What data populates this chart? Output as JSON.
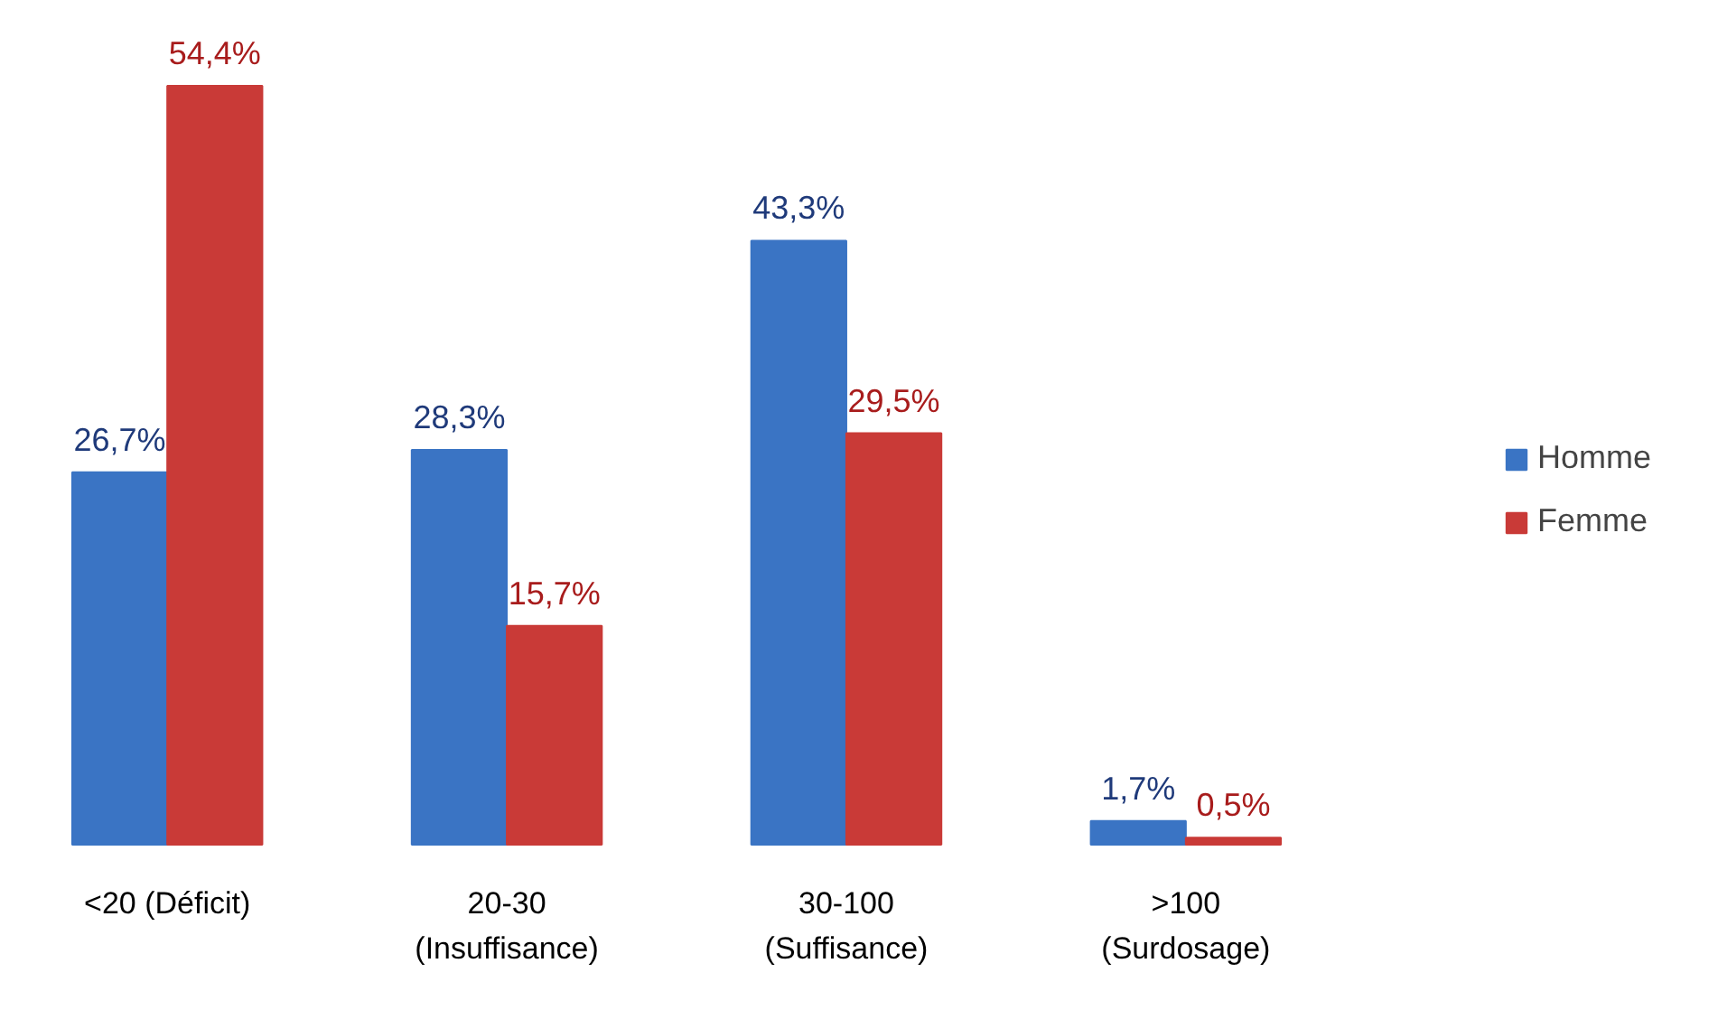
{
  "chart_data": {
    "type": "bar",
    "categories": [
      "<20 (Déficit)",
      "20-30\n(Insuffisance)",
      "30-100\n(Suffisance)",
      ">100\n(Surdosage)"
    ],
    "series": [
      {
        "name": "Homme",
        "color": "#3a74c4",
        "values": [
          26.7,
          28.3,
          43.3,
          1.7
        ],
        "value_labels": [
          "26,7%",
          "28,3%",
          "43,3%",
          "1,7%"
        ]
      },
      {
        "name": "Femme",
        "color": "#c93a37",
        "values": [
          54.4,
          15.7,
          29.5,
          0.5
        ],
        "value_labels": [
          "54,4%",
          "15,7%",
          "29,5%",
          "0,5%"
        ]
      }
    ],
    "legend": "right",
    "grid": false
  }
}
